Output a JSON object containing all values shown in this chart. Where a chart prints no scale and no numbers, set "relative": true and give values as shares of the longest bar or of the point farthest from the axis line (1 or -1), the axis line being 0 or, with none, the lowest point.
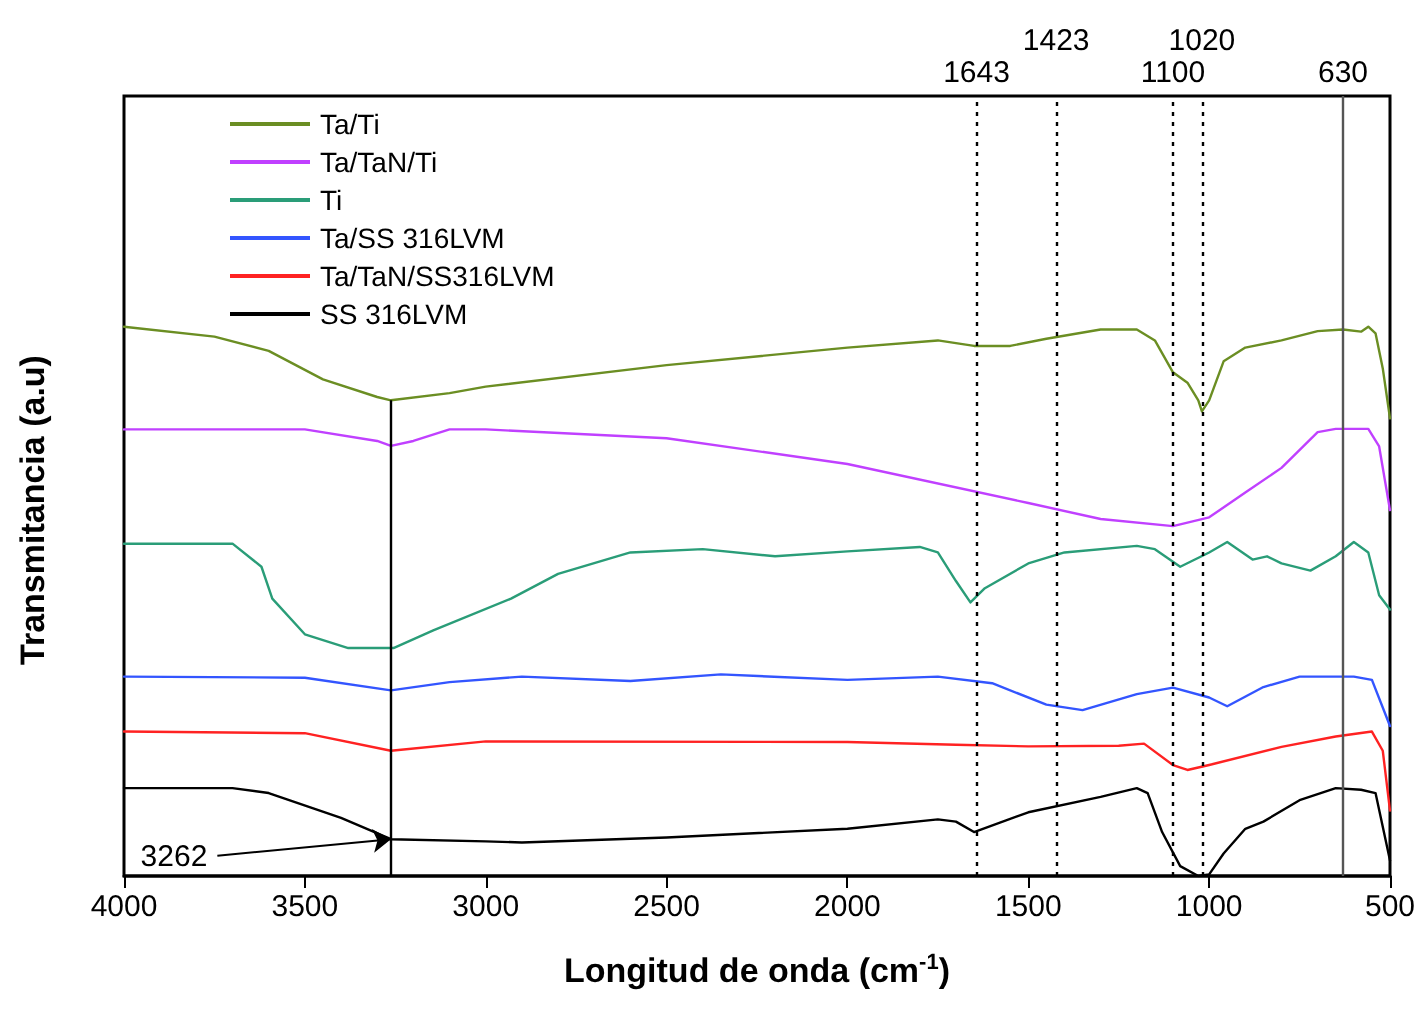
{
  "chart_data": {
    "type": "line",
    "relative": true,
    "xlabel": "Longitud de onda (cm$^{-1}$)",
    "ylabel": "Transmitancia (a.u)",
    "xlim": [
      4000,
      500
    ],
    "xticks": [
      4000,
      3500,
      3000,
      2500,
      2000,
      1500,
      1000,
      500
    ],
    "grid": false,
    "legend": "top left",
    "marker": "none",
    "line_style": "solid",
    "series": [
      {
        "name": "Ta/Ti",
        "color": "#6b8e23",
        "x": [
          4000,
          3750,
          3600,
          3450,
          3300,
          3262,
          3100,
          3000,
          2500,
          2000,
          1750,
          1650,
          1550,
          1450,
          1300,
          1200,
          1150,
          1100,
          1060,
          1030,
          1020,
          1000,
          960,
          900,
          800,
          700,
          630,
          580,
          560,
          540,
          520,
          500
        ],
        "values": [
          1.0,
          0.982,
          0.956,
          0.904,
          0.872,
          0.866,
          0.879,
          0.891,
          0.93,
          0.962,
          0.975,
          0.965,
          0.965,
          0.978,
          0.995,
          0.995,
          0.975,
          0.917,
          0.898,
          0.866,
          0.846,
          0.866,
          0.937,
          0.962,
          0.975,
          0.992,
          0.995,
          0.991,
          1.0,
          0.988,
          0.924,
          0.833
        ]
      },
      {
        "name": "Ta/TaN/Ti",
        "color": "#c040ff",
        "x": [
          4000,
          3500,
          3300,
          3262,
          3200,
          3100,
          3000,
          2500,
          2000,
          1500,
          1300,
          1100,
          1000,
          900,
          800,
          700,
          650,
          560,
          530,
          500
        ],
        "values": [
          0.813,
          0.813,
          0.792,
          0.783,
          0.792,
          0.813,
          0.813,
          0.797,
          0.75,
          0.679,
          0.65,
          0.637,
          0.653,
          0.698,
          0.743,
          0.808,
          0.814,
          0.814,
          0.782,
          0.666
        ]
      },
      {
        "name": "Ti",
        "color": "#2a9d78",
        "x": [
          4000,
          3700,
          3620,
          3590,
          3500,
          3380,
          3255,
          3145,
          2930,
          2800,
          2600,
          2400,
          2200,
          2000,
          1800,
          1750,
          1700,
          1660,
          1620,
          1500,
          1400,
          1200,
          1150,
          1080,
          1000,
          950,
          880,
          840,
          800,
          720,
          650,
          600,
          560,
          530,
          500
        ],
        "values": [
          0.605,
          0.605,
          0.563,
          0.505,
          0.44,
          0.415,
          0.415,
          0.447,
          0.505,
          0.55,
          0.589,
          0.595,
          0.582,
          0.591,
          0.599,
          0.589,
          0.537,
          0.498,
          0.524,
          0.569,
          0.589,
          0.601,
          0.595,
          0.563,
          0.589,
          0.608,
          0.576,
          0.582,
          0.569,
          0.556,
          0.582,
          0.608,
          0.589,
          0.511,
          0.485
        ]
      },
      {
        "name": "Ta/SS 316LVM",
        "color": "#3355ff",
        "x": [
          4000,
          3500,
          3262,
          3100,
          2900,
          2600,
          2350,
          2000,
          1750,
          1600,
          1450,
          1350,
          1200,
          1100,
          1000,
          950,
          850,
          750,
          600,
          550,
          500
        ],
        "values": [
          0.363,
          0.361,
          0.338,
          0.353,
          0.363,
          0.355,
          0.367,
          0.357,
          0.363,
          0.351,
          0.312,
          0.302,
          0.331,
          0.343,
          0.325,
          0.309,
          0.344,
          0.363,
          0.363,
          0.357,
          0.273
        ]
      },
      {
        "name": "Ta/TaN/SS316LVM",
        "color": "#ff2222",
        "x": [
          4000,
          3500,
          3262,
          3000,
          2000,
          1700,
          1500,
          1250,
          1180,
          1100,
          1060,
          1000,
          800,
          650,
          550,
          520,
          500
        ],
        "values": [
          0.263,
          0.26,
          0.228,
          0.245,
          0.244,
          0.239,
          0.236,
          0.237,
          0.241,
          0.202,
          0.193,
          0.202,
          0.235,
          0.254,
          0.263,
          0.228,
          0.119
        ]
      },
      {
        "name": "SS 316LVM",
        "color": "#000000",
        "x": [
          4000,
          3700,
          3600,
          3400,
          3262,
          3000,
          2900,
          2500,
          2000,
          1750,
          1700,
          1650,
          1500,
          1300,
          1200,
          1170,
          1130,
          1080,
          1030,
          1000,
          960,
          900,
          850,
          750,
          650,
          580,
          540,
          500
        ],
        "values": [
          0.16,
          0.16,
          0.151,
          0.106,
          0.067,
          0.063,
          0.061,
          0.07,
          0.086,
          0.103,
          0.099,
          0.08,
          0.116,
          0.144,
          0.16,
          0.151,
          0.08,
          0.018,
          0.0,
          0.003,
          0.041,
          0.086,
          0.099,
          0.138,
          0.16,
          0.157,
          0.151,
          0.028
        ]
      }
    ],
    "ref_lines": [
      {
        "axis": "x",
        "value": 3262,
        "line_style": "solid",
        "color": "#000000"
      },
      {
        "axis": "x",
        "value": 1643,
        "label": "1643",
        "line_style": "dotted",
        "color": "#000000"
      },
      {
        "axis": "x",
        "value": 1423,
        "label": "1423",
        "line_style": "dotted",
        "color": "#000000"
      },
      {
        "axis": "x",
        "value": 1100,
        "label": "1100",
        "line_style": "dotted",
        "color": "#000000"
      },
      {
        "axis": "x",
        "value": 1020,
        "label": "1020",
        "line_style": "dotted",
        "color": "#000000"
      },
      {
        "axis": "x",
        "value": 630,
        "label": "630",
        "line_style": "solid",
        "color": "#555555"
      }
    ],
    "annotations": [
      {
        "text": "3262",
        "x": 3262,
        "y": 0.067
      }
    ]
  }
}
